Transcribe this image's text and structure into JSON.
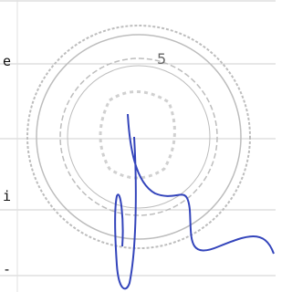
{
  "margin": {
    "labels": [
      "e",
      "i",
      "-"
    ]
  },
  "seal": {
    "number": "5"
  }
}
